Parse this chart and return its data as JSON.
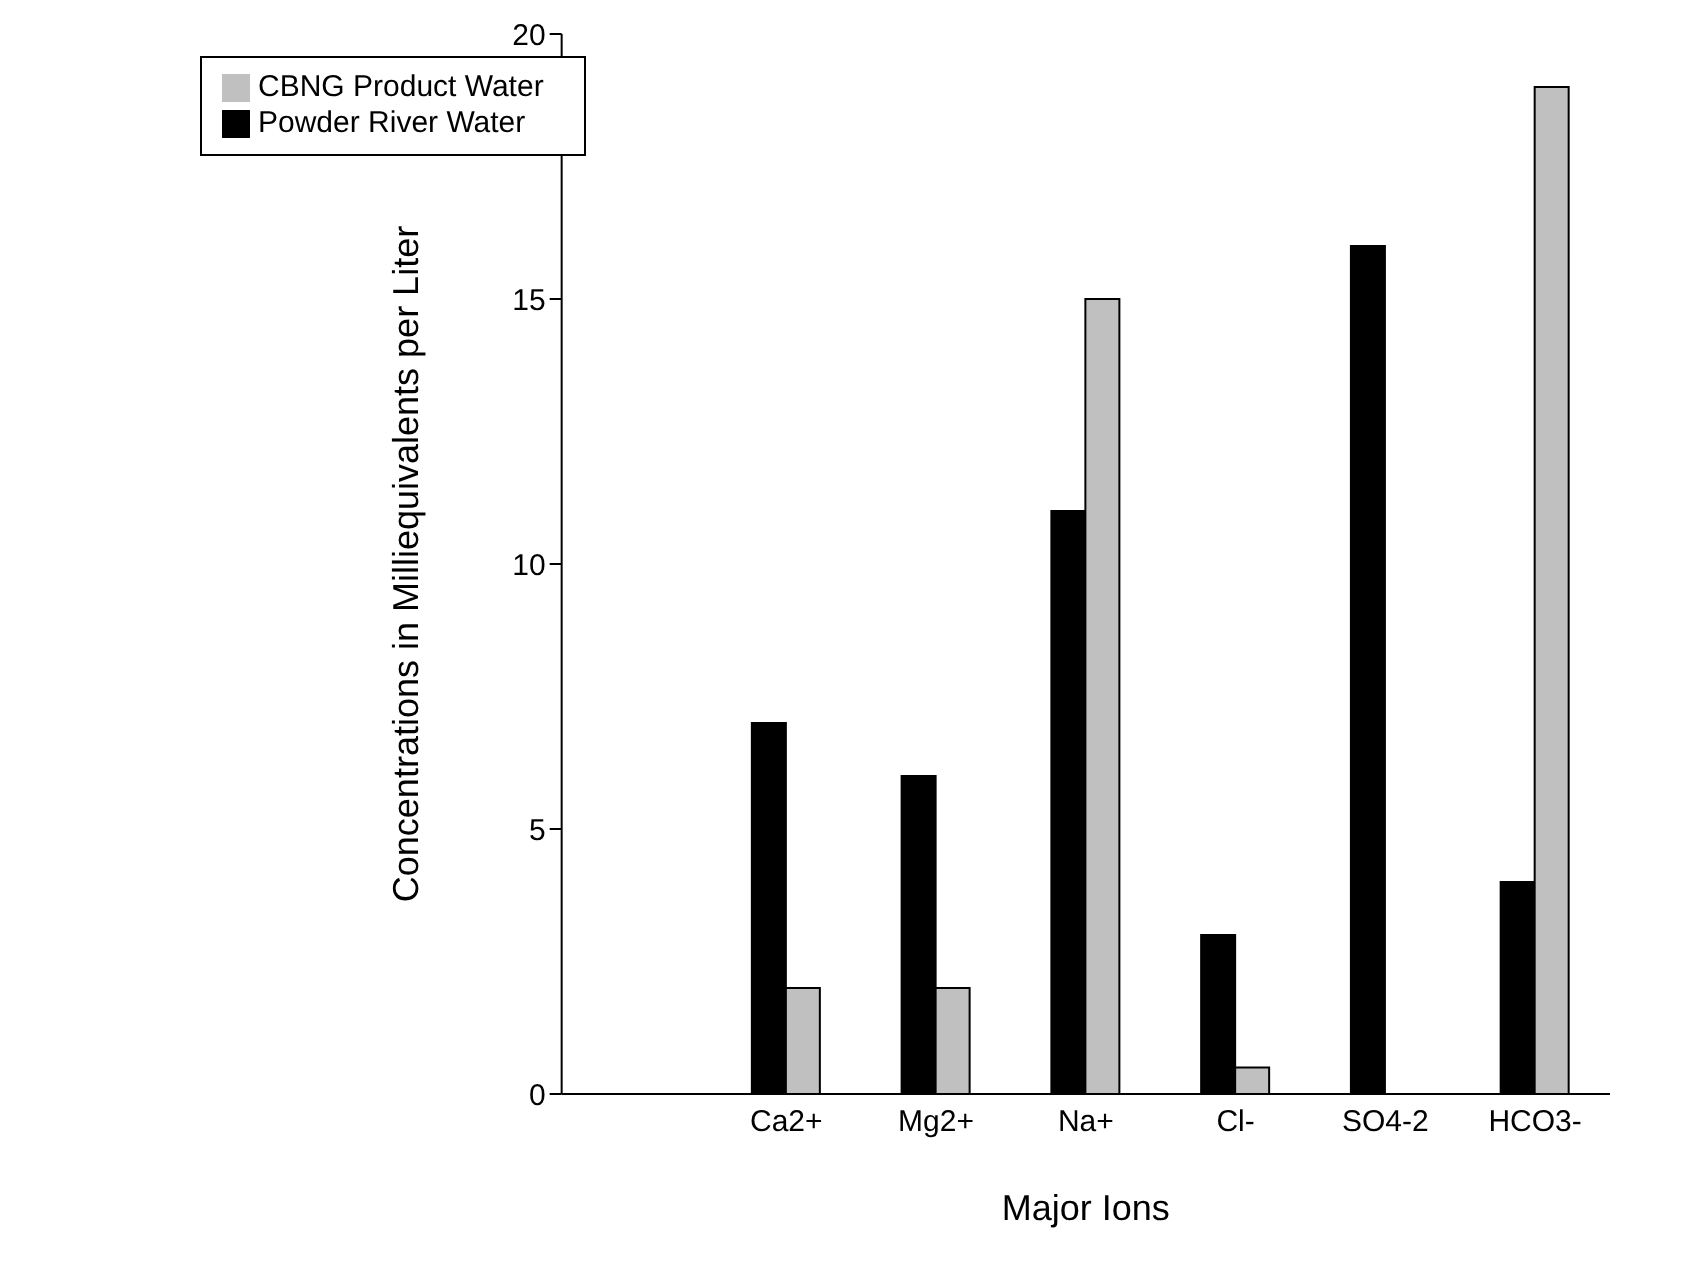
{
  "chart_data": {
    "type": "bar",
    "xlabel": "Major Ions",
    "ylabel": "Concentrations in Milliequivalents per Liter",
    "categories": [
      null,
      "Ca2+",
      "Mg2+",
      "Na+",
      "Cl-",
      "SO4-2",
      "HCO3-"
    ],
    "series": [
      {
        "name": "Powder River Water",
        "color": "#000000",
        "values": [
          null,
          7,
          6,
          11,
          3,
          16,
          4
        ]
      },
      {
        "name": "CBNG Product Water",
        "color": "#c0c0c0",
        "values": [
          null,
          2,
          2,
          15,
          0.5,
          0,
          19
        ]
      }
    ],
    "ylim": [
      0,
      20
    ],
    "yticks": [
      0,
      5,
      10,
      15,
      20
    ],
    "grid": false,
    "legend": "top left"
  }
}
